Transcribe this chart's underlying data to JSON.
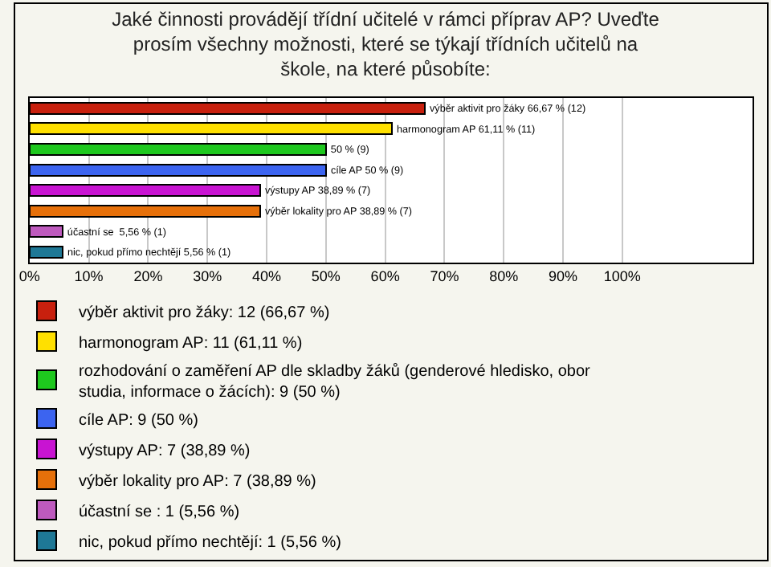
{
  "chart_data": {
    "type": "bar",
    "orientation": "horizontal",
    "stacked": true,
    "title": "Jaké činnosti provádějí třídní učitelé v rámci příprav AP? Uveďte prosím všechny možnosti, které se týkají třídních učitelů na škole, na které působíte:",
    "categories": [
      null,
      null,
      null,
      null,
      null,
      null,
      null,
      null
    ],
    "series": [
      {
        "name": "výběr aktivit pro žáky: 12 (66,67 %)",
        "color": "#c8200e",
        "values": [
          66.67,
          null,
          null,
          null,
          null,
          null,
          null,
          null
        ],
        "value_labels": [
          "výběr aktivit pro žáky 66,67 % (12)",
          null,
          null,
          null,
          null,
          null,
          null,
          null
        ]
      },
      {
        "name": "harmonogram AP: 11 (61,11 %)",
        "color": "#ffe000",
        "values": [
          null,
          61.11,
          null,
          null,
          null,
          null,
          null,
          null
        ],
        "value_labels": [
          null,
          "harmonogram AP 61,11 % (11)",
          null,
          null,
          null,
          null,
          null,
          null
        ]
      },
      {
        "name": "rozhodování o zaměření AP dle skladby žáků (genderové hledisko, obor studia, informace o žácích): 9 (50 %)",
        "color": "#1ec81e",
        "values": [
          null,
          null,
          50,
          null,
          null,
          null,
          null,
          null
        ],
        "value_labels": [
          null,
          null,
          "50 % (9)",
          null,
          null,
          null,
          null,
          null
        ]
      },
      {
        "name": "cíle AP: 9 (50 %)",
        "color": "#3c64f0",
        "values": [
          null,
          null,
          null,
          50,
          null,
          null,
          null,
          null
        ],
        "value_labels": [
          null,
          null,
          null,
          "cíle AP 50 % (9)",
          null,
          null,
          null,
          null
        ]
      },
      {
        "name": "výstupy AP: 7 (38,89 %)",
        "color": "#c814d2",
        "values": [
          null,
          null,
          null,
          null,
          38.89,
          null,
          null,
          null
        ],
        "value_labels": [
          null,
          null,
          null,
          null,
          "výstupy AP 38,89 % (7)",
          null,
          null,
          null
        ]
      },
      {
        "name": "výběr lokality pro AP: 7 (38,89 %)",
        "color": "#e6700a",
        "values": [
          null,
          null,
          null,
          null,
          null,
          38.89,
          null,
          null
        ],
        "value_labels": [
          null,
          null,
          null,
          null,
          null,
          "výběr lokality pro AP 38,89 % (7)",
          null,
          null
        ]
      },
      {
        "name": "účastní se : 1 (5,56 %)",
        "color": "#be5abe",
        "values": [
          null,
          null,
          null,
          null,
          null,
          null,
          5.56,
          null
        ],
        "value_labels": [
          null,
          null,
          null,
          null,
          null,
          null,
          "účastní se  5,56 % (1)",
          null
        ]
      },
      {
        "name": "nic, pokud přímo nechtějí: 1 (5,56 %)",
        "color": "#1e7896",
        "values": [
          null,
          null,
          null,
          null,
          null,
          null,
          null,
          5.56
        ],
        "value_labels": [
          null,
          null,
          null,
          null,
          null,
          null,
          null,
          "nic, pokud přímo nechtějí 5,56 % (1)"
        ]
      }
    ],
    "xlim": [
      0,
      122
    ],
    "xticks": [
      {
        "value": 0,
        "label": "0%"
      },
      {
        "value": 10,
        "label": "10%"
      },
      {
        "value": 20,
        "label": "20%"
      },
      {
        "value": 30,
        "label": "30%"
      },
      {
        "value": 40,
        "label": "40%"
      },
      {
        "value": 50,
        "label": "50%"
      },
      {
        "value": 60,
        "label": "60%"
      },
      {
        "value": 70,
        "label": "70%"
      },
      {
        "value": 80,
        "label": "80%"
      },
      {
        "value": 90,
        "label": "90%"
      },
      {
        "value": 100,
        "label": "100%"
      }
    ],
    "grid": "x",
    "legend": "bottom"
  }
}
